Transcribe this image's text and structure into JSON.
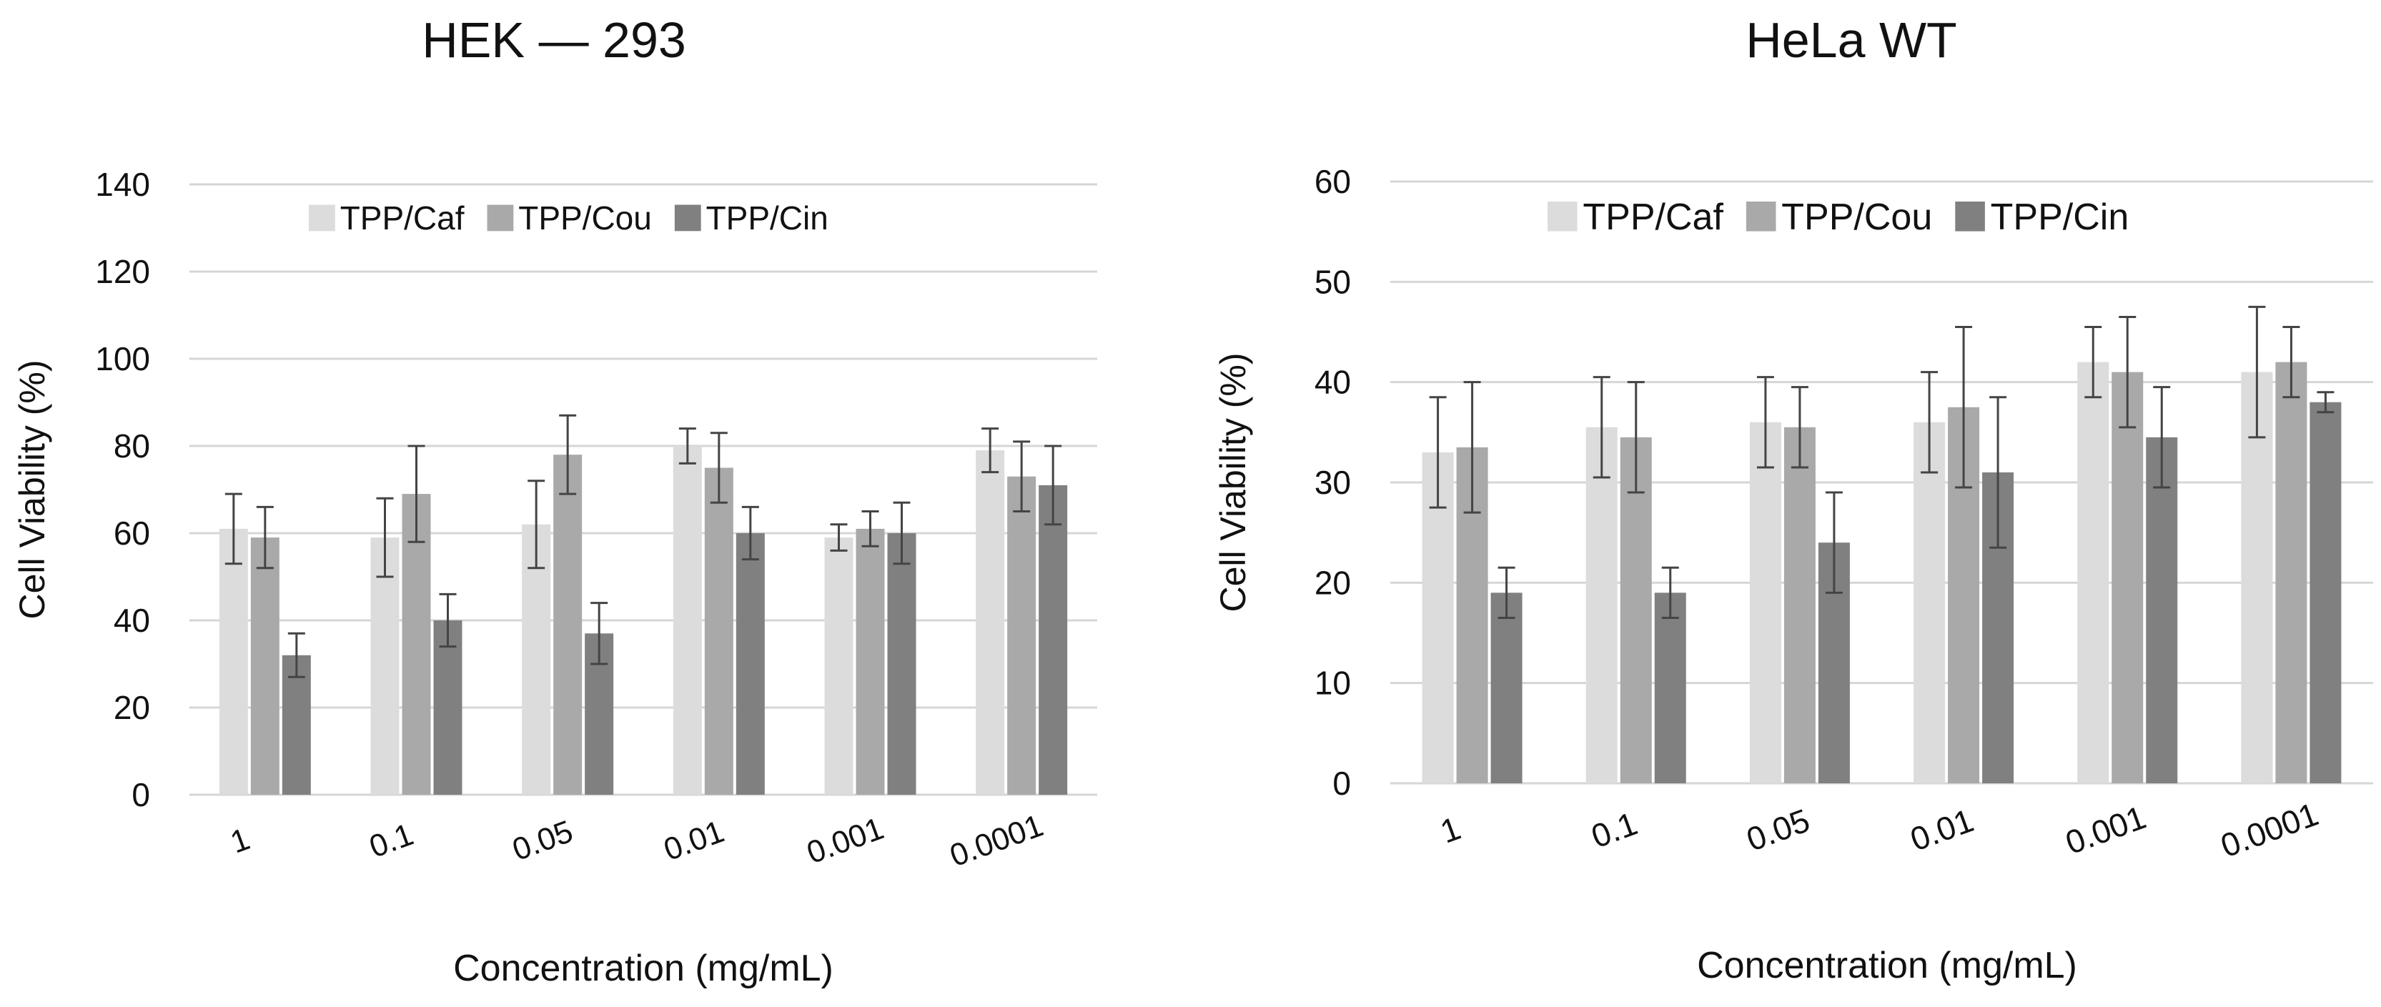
{
  "chart_data": [
    {
      "type": "bar",
      "title": "HEK — 293",
      "xlabel": "Concentration (mg/mL)",
      "ylabel": "Cell Viability (%)",
      "ylim": [
        0,
        140
      ],
      "yticks": [
        0,
        20,
        40,
        60,
        80,
        100,
        120,
        140
      ],
      "categories": [
        "1",
        "0.1",
        "0.05",
        "0.01",
        "0.001",
        "0.0001"
      ],
      "grid": true,
      "legend_position": "top",
      "series": [
        {
          "name": "TPP/Caf",
          "color": "#dcdcdc",
          "values": [
            61,
            59,
            62,
            80,
            59,
            79
          ],
          "errors": [
            8,
            9,
            10,
            4,
            3,
            5
          ]
        },
        {
          "name": "TPP/Cou",
          "color": "#a9a9a9",
          "values": [
            59,
            69,
            78,
            75,
            61,
            73
          ],
          "errors": [
            7,
            11,
            9,
            8,
            4,
            8
          ]
        },
        {
          "name": "TPP/Cin",
          "color": "#808080",
          "values": [
            32,
            40,
            37,
            60,
            60,
            71
          ],
          "errors": [
            5,
            6,
            7,
            6,
            7,
            9
          ]
        }
      ]
    },
    {
      "type": "bar",
      "title": "HeLa WT",
      "xlabel": "Concentration (mg/mL)",
      "ylabel": "Cell Viability (%)",
      "ylim": [
        0,
        60
      ],
      "yticks": [
        0,
        10,
        20,
        30,
        40,
        50,
        60
      ],
      "categories": [
        "1",
        "0.1",
        "0.05",
        "0.01",
        "0.001",
        "0.0001"
      ],
      "grid": true,
      "legend_position": "top",
      "series": [
        {
          "name": "TPP/Caf",
          "color": "#dcdcdc",
          "values": [
            33,
            35.5,
            36,
            36,
            42,
            41
          ],
          "errors": [
            5.5,
            5,
            4.5,
            5,
            3.5,
            6.5
          ]
        },
        {
          "name": "TPP/Cou",
          "color": "#a9a9a9",
          "values": [
            33.5,
            34.5,
            35.5,
            37.5,
            41,
            42
          ],
          "errors": [
            6.5,
            5.5,
            4,
            8,
            5.5,
            3.5
          ]
        },
        {
          "name": "TPP/Cin",
          "color": "#808080",
          "values": [
            19,
            19,
            24,
            31,
            34.5,
            38
          ],
          "errors": [
            2.5,
            2.5,
            5,
            7.5,
            5,
            1
          ]
        }
      ]
    }
  ]
}
